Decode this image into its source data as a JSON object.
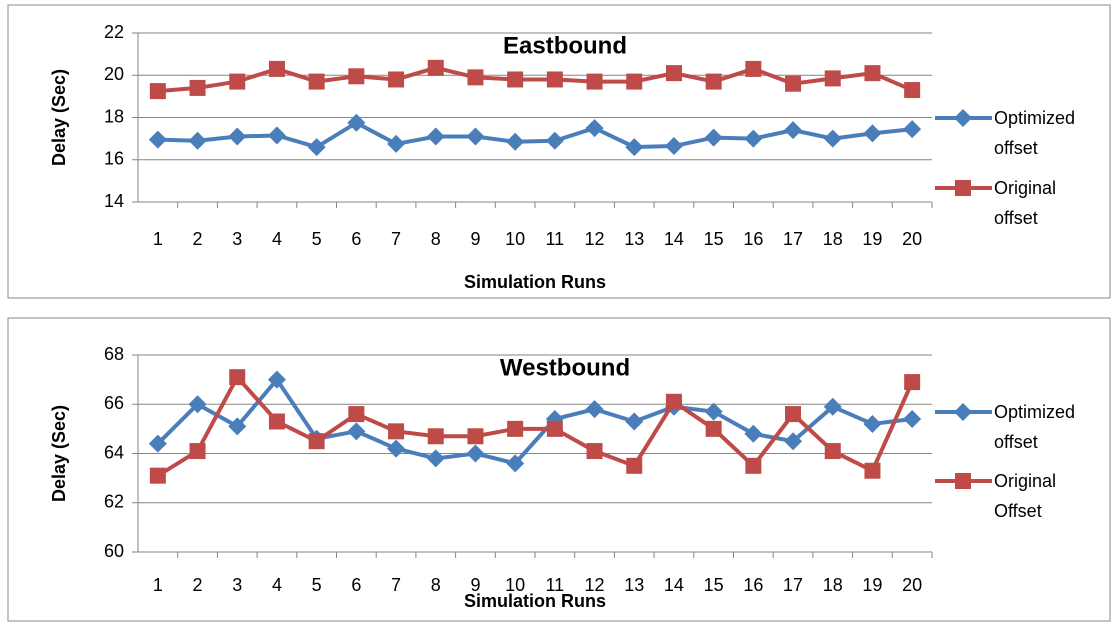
{
  "chart_data": [
    {
      "type": "line",
      "title": "Eastbound",
      "x_label": "Simulation Runs",
      "y_label": "Delay (Sec)",
      "categories": [
        "1",
        "2",
        "3",
        "4",
        "5",
        "6",
        "7",
        "8",
        "9",
        "10",
        "11",
        "12",
        "13",
        "14",
        "15",
        "16",
        "17",
        "18",
        "19",
        "20"
      ],
      "series": [
        {
          "name": "Optimized offset",
          "color": "#4a7ebb",
          "marker": "diamond",
          "values": [
            16.95,
            16.9,
            17.1,
            17.15,
            16.6,
            17.75,
            16.75,
            17.1,
            17.1,
            16.85,
            16.9,
            17.5,
            16.6,
            16.65,
            17.05,
            17.0,
            17.4,
            17.0,
            17.25,
            17.45
          ]
        },
        {
          "name": "Original offset",
          "color": "#be4b48",
          "marker": "square",
          "values": [
            19.25,
            19.4,
            19.7,
            20.3,
            19.7,
            19.95,
            19.8,
            20.35,
            19.9,
            19.8,
            19.8,
            19.7,
            19.7,
            20.1,
            19.7,
            20.3,
            19.6,
            19.85,
            20.1,
            19.3
          ]
        }
      ],
      "ylim": [
        14,
        22
      ],
      "yticks": [
        14,
        16,
        18,
        20,
        22
      ],
      "grid": true,
      "legend": "right"
    },
    {
      "type": "line",
      "title": "Westbound",
      "x_label": "Simulation Runs",
      "y_label": "Delay (Sec)",
      "categories": [
        "1",
        "2",
        "3",
        "4",
        "5",
        "6",
        "7",
        "8",
        "9",
        "10",
        "11",
        "12",
        "13",
        "14",
        "15",
        "16",
        "17",
        "18",
        "19",
        "20"
      ],
      "series": [
        {
          "name": "Optimized offset",
          "color": "#4a7ebb",
          "marker": "diamond",
          "values": [
            64.4,
            66.0,
            65.1,
            67.0,
            64.6,
            64.9,
            64.2,
            63.8,
            64.0,
            63.6,
            65.4,
            65.8,
            65.3,
            65.9,
            65.7,
            64.8,
            64.5,
            65.9,
            65.2,
            65.4
          ]
        },
        {
          "name": "Original Offset",
          "color": "#be4b48",
          "marker": "square",
          "values": [
            63.1,
            64.1,
            67.1,
            65.3,
            64.5,
            65.6,
            64.9,
            64.7,
            64.7,
            65.0,
            65.0,
            64.1,
            63.5,
            66.1,
            65.0,
            63.5,
            65.6,
            64.1,
            63.3,
            66.9
          ]
        }
      ],
      "ylim": [
        60,
        68
      ],
      "yticks": [
        60,
        62,
        64,
        66,
        68
      ],
      "grid": true,
      "legend": "right"
    }
  ]
}
